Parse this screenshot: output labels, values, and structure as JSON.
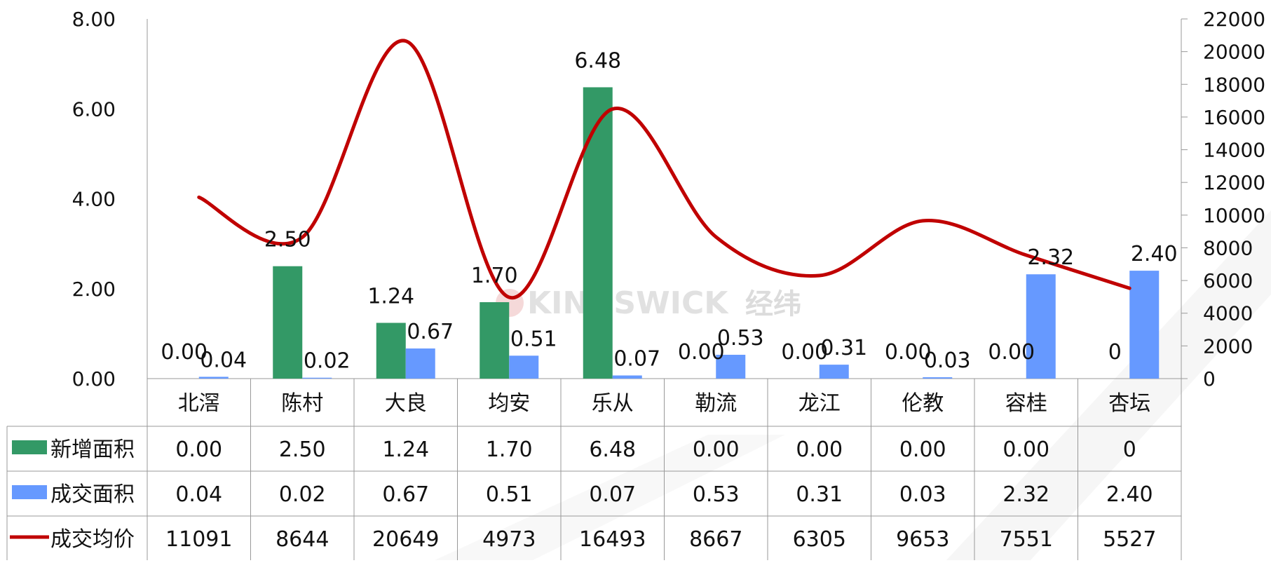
{
  "watermark": {
    "brand": "KINGSWICK",
    "cn": "经纬"
  },
  "colors": {
    "new_area": "#339966",
    "deal_area": "#6699ff",
    "avg_price": "#c00000"
  },
  "chart_data": {
    "type": "bar",
    "categories": [
      "北滘",
      "陈村",
      "大良",
      "均安",
      "乐从",
      "勒流",
      "龙江",
      "伦教",
      "容桂",
      "杏坛"
    ],
    "left_axis": {
      "ylim": [
        0,
        8
      ],
      "ticks": [
        "0.00",
        "2.00",
        "4.00",
        "6.00",
        "8.00"
      ]
    },
    "right_axis": {
      "ylim": [
        0,
        22000
      ],
      "ticks": [
        "0",
        "2000",
        "4000",
        "6000",
        "8000",
        "10000",
        "12000",
        "14000",
        "16000",
        "18000",
        "20000",
        "22000"
      ]
    },
    "series": [
      {
        "name": "新增面积",
        "type": "bar",
        "axis": "left",
        "values": [
          0,
          2.5,
          1.24,
          1.7,
          6.48,
          0,
          0,
          0,
          0,
          0
        ],
        "labels": [
          "0.00",
          "2.50",
          "1.24",
          "1.70",
          "6.48",
          "0.00",
          "0.00",
          "0.00",
          "0.00",
          "0"
        ]
      },
      {
        "name": "成交面积",
        "type": "bar",
        "axis": "left",
        "values": [
          0.04,
          0.02,
          0.67,
          0.51,
          0.07,
          0.53,
          0.31,
          0.03,
          2.32,
          2.4
        ],
        "labels": [
          "0.04",
          "0.02",
          "0.67",
          "0.51",
          "0.07",
          "0.53",
          "0.31",
          "0.03",
          "2.32",
          "2.40"
        ]
      },
      {
        "name": "成交均价",
        "type": "line",
        "axis": "right",
        "values": [
          11091,
          8644,
          20649,
          4973,
          16493,
          8667,
          6305,
          9653,
          7551,
          5527
        ],
        "labels": [
          "11091",
          "8644",
          "20649",
          "4973",
          "16493",
          "8667",
          "6305",
          "9653",
          "7551",
          "5527"
        ]
      }
    ],
    "grid": false,
    "legend": "data-table"
  }
}
